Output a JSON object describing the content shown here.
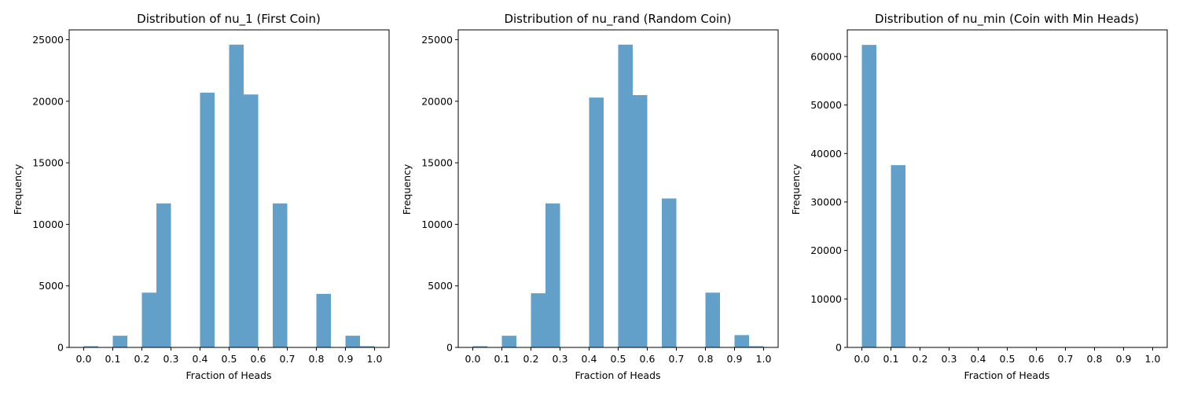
{
  "chart_data": [
    {
      "type": "bar",
      "title": "Distribution of nu_1 (First Coin)",
      "xlabel": "Fraction of Heads",
      "ylabel": "Frequency",
      "xlim": [
        -0.05,
        1.05
      ],
      "ylim": [
        0,
        25800
      ],
      "xticks": [
        "0.0",
        "0.1",
        "0.2",
        "0.3",
        "0.4",
        "0.5",
        "0.6",
        "0.7",
        "0.8",
        "0.9",
        "1.0"
      ],
      "yticks": [
        "0",
        "5000",
        "10000",
        "15000",
        "20000",
        "25000"
      ],
      "bin_width": 0.05,
      "bins": [
        {
          "x": 0.0,
          "value": 100
        },
        {
          "x": 0.1,
          "value": 950
        },
        {
          "x": 0.2,
          "value": 4450
        },
        {
          "x": 0.25,
          "value": 11700
        },
        {
          "x": 0.4,
          "value": 20700
        },
        {
          "x": 0.5,
          "value": 24600
        },
        {
          "x": 0.55,
          "value": 20550
        },
        {
          "x": 0.65,
          "value": 11700
        },
        {
          "x": 0.8,
          "value": 4350
        },
        {
          "x": 0.9,
          "value": 950
        },
        {
          "x": 0.95,
          "value": 100
        }
      ]
    },
    {
      "type": "bar",
      "title": "Distribution of nu_rand (Random Coin)",
      "xlabel": "Fraction of Heads",
      "ylabel": "Frequency",
      "xlim": [
        -0.05,
        1.05
      ],
      "ylim": [
        0,
        25800
      ],
      "xticks": [
        "0.0",
        "0.1",
        "0.2",
        "0.3",
        "0.4",
        "0.5",
        "0.6",
        "0.7",
        "0.8",
        "0.9",
        "1.0"
      ],
      "yticks": [
        "0",
        "5000",
        "10000",
        "15000",
        "20000",
        "25000"
      ],
      "bin_width": 0.05,
      "bins": [
        {
          "x": 0.0,
          "value": 100
        },
        {
          "x": 0.1,
          "value": 950
        },
        {
          "x": 0.2,
          "value": 4400
        },
        {
          "x": 0.25,
          "value": 11700
        },
        {
          "x": 0.4,
          "value": 20300
        },
        {
          "x": 0.5,
          "value": 24600
        },
        {
          "x": 0.55,
          "value": 20500
        },
        {
          "x": 0.65,
          "value": 12100
        },
        {
          "x": 0.8,
          "value": 4450
        },
        {
          "x": 0.9,
          "value": 1000
        },
        {
          "x": 0.95,
          "value": 100
        }
      ]
    },
    {
      "type": "bar",
      "title": "Distribution of nu_min (Coin with Min Heads)",
      "xlabel": "Fraction of Heads",
      "ylabel": "Frequency",
      "xlim": [
        -0.05,
        1.05
      ],
      "ylim": [
        0,
        65500
      ],
      "xticks": [
        "0.0",
        "0.1",
        "0.2",
        "0.3",
        "0.4",
        "0.5",
        "0.6",
        "0.7",
        "0.8",
        "0.9",
        "1.0"
      ],
      "yticks": [
        "0",
        "10000",
        "20000",
        "30000",
        "40000",
        "50000",
        "60000"
      ],
      "bin_width": 0.05,
      "bins": [
        {
          "x": 0.0,
          "value": 62400
        },
        {
          "x": 0.1,
          "value": 37600
        }
      ]
    }
  ],
  "colors": {
    "bar": "#1f77b4",
    "bar_opacity": "0.7",
    "axis": "#000000"
  }
}
